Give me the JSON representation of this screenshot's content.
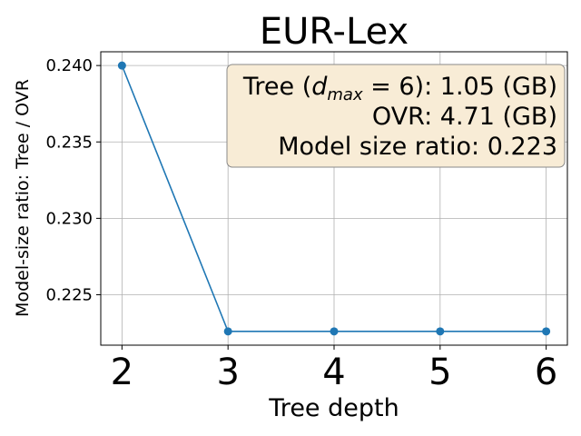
{
  "chart_data": {
    "type": "line",
    "title": "EUR-Lex",
    "x_label": "Tree depth",
    "y_label": "Model-size ratio: Tree / OVR",
    "x": [
      2,
      3,
      4,
      5,
      6
    ],
    "series": [
      {
        "color": "#1f77b4",
        "values": [
          0.24,
          0.2226,
          0.2226,
          0.2226,
          0.2226
        ]
      }
    ],
    "xlim": [
      1.8,
      6.2
    ],
    "xticks": [
      2,
      3,
      4,
      5,
      6
    ],
    "ylim": [
      0.2217,
      0.2409
    ],
    "yticks": [
      {
        "value": 0.24,
        "label": "0.240"
      },
      0.235,
      {
        "value": 0.23,
        "label": "0.230"
      },
      0.225
    ],
    "grid": true,
    "annotation": {
      "line1": [
        "Tree (",
        "d",
        "max",
        " = 6): 1.05 (GB)"
      ],
      "line2": "OVR: 4.71 (GB)",
      "line3": "Model size ratio: 0.223"
    }
  }
}
